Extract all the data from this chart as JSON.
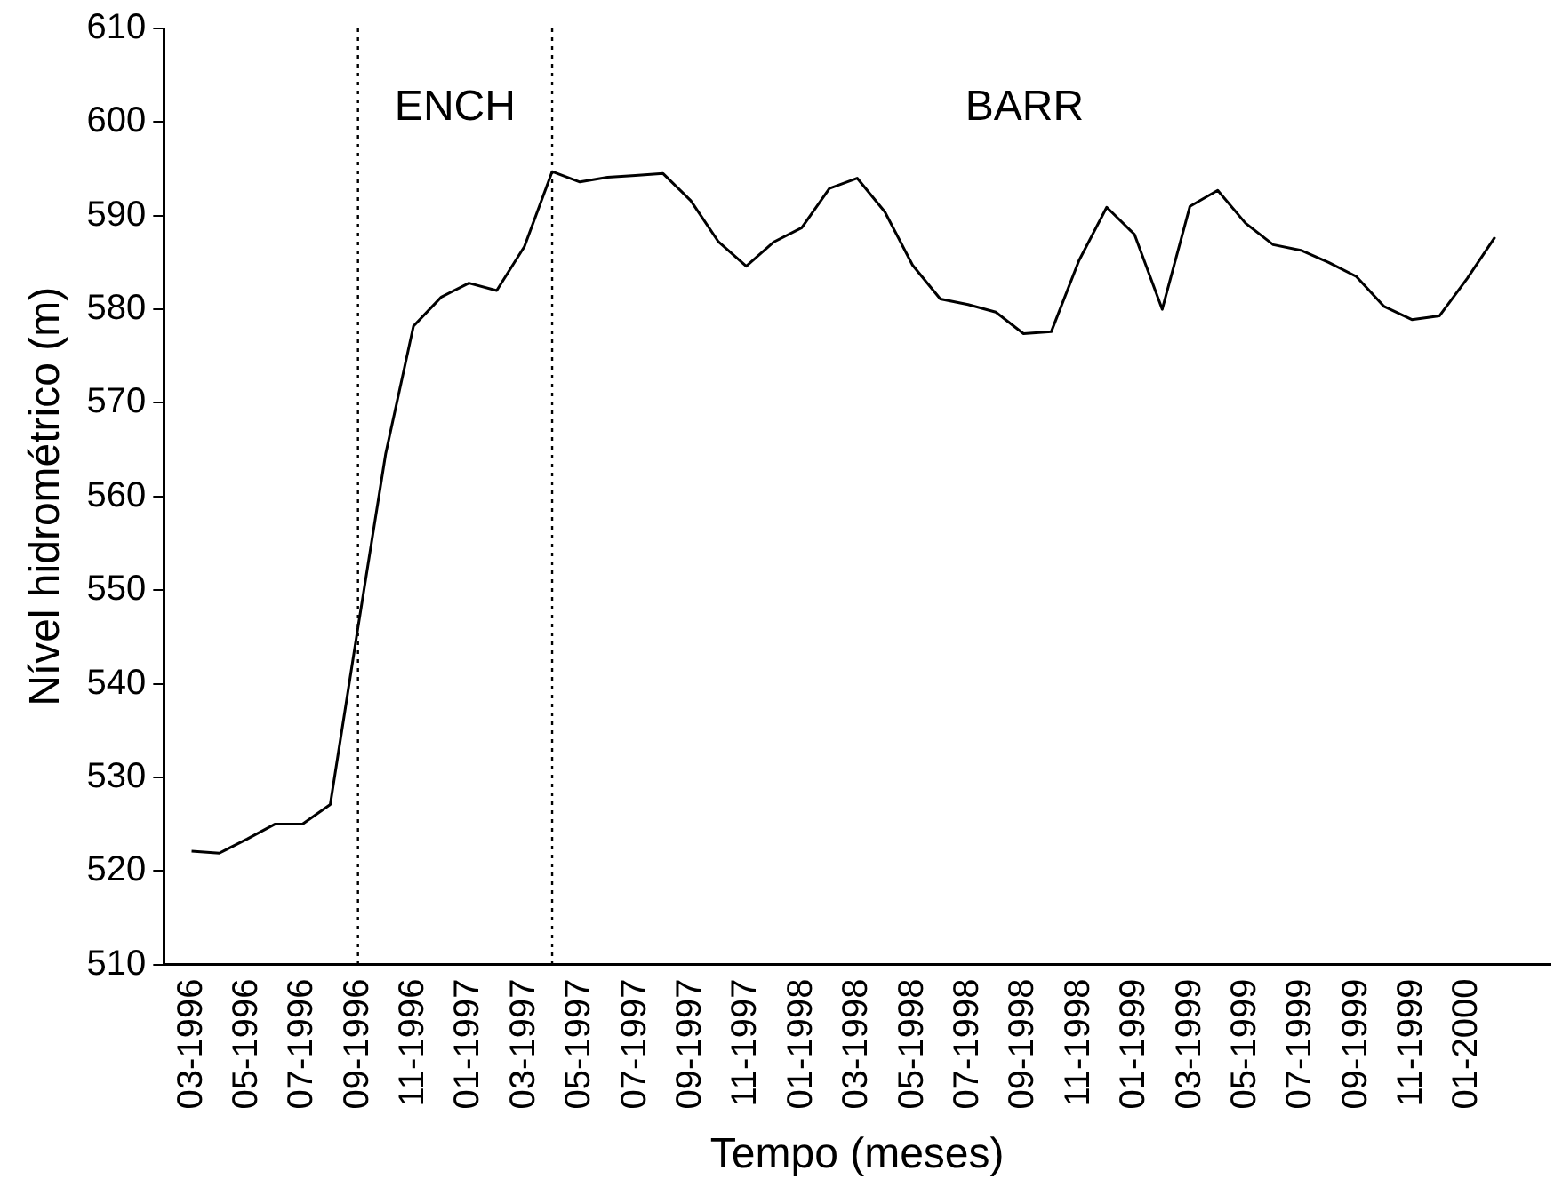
{
  "chart_data": {
    "type": "line",
    "xlabel": "Tempo (meses)",
    "ylabel": "Nível hidrométrico (m)",
    "x": [
      "1996-03",
      "1996-04",
      "1996-05",
      "1996-06",
      "1996-07",
      "1996-08",
      "1996-09",
      "1996-10",
      "1996-11",
      "1996-12",
      "1997-01",
      "1997-02",
      "1997-03",
      "1997-04",
      "1997-05",
      "1997-06",
      "1997-07",
      "1997-08",
      "1997-09",
      "1997-10",
      "1997-11",
      "1997-12",
      "1998-01",
      "1998-02",
      "1998-03",
      "1998-04",
      "1998-05",
      "1998-06",
      "1998-07",
      "1998-08",
      "1998-09",
      "1998-10",
      "1998-11",
      "1998-12",
      "1999-01",
      "1999-02",
      "1999-03",
      "1999-04",
      "1999-05",
      "1999-06",
      "1999-07",
      "1999-08",
      "1999-09",
      "1999-10",
      "1999-11",
      "1999-12",
      "2000-01",
      "2000-02"
    ],
    "values": [
      522.1,
      521.9,
      523.4,
      525,
      525,
      527.1,
      546,
      564.6,
      578.2,
      581.3,
      582.8,
      582,
      586.7,
      594.7,
      593.6,
      594.1,
      594.3,
      594.5,
      591.6,
      587.2,
      584.6,
      587.2,
      588.7,
      592.9,
      594,
      590.4,
      584.7,
      581.1,
      580.5,
      579.7,
      577.4,
      577.6,
      585.2,
      590.9,
      588,
      580,
      591,
      592.7,
      589.2,
      586.9,
      586.3,
      585,
      583.5,
      580.3,
      578.9,
      579.3,
      583.3,
      587.7
    ],
    "color": "#000000",
    "marker": "none",
    "line_style": "solid",
    "grid": false,
    "xlim": [
      "1996-02",
      "2000-04"
    ],
    "ylim": [
      510,
      610
    ],
    "yticks": [
      510,
      520,
      530,
      540,
      550,
      560,
      570,
      580,
      590,
      600,
      610
    ],
    "xticks": [
      {
        "value": "1996-03",
        "label": "03-1996"
      },
      {
        "value": "1996-05",
        "label": "05-1996"
      },
      {
        "value": "1996-07",
        "label": "07-1996"
      },
      {
        "value": "1996-09",
        "label": "09-1996"
      },
      {
        "value": "1996-11",
        "label": "11-1996"
      },
      {
        "value": "1997-01",
        "label": "01-1997"
      },
      {
        "value": "1997-03",
        "label": "03-1997"
      },
      {
        "value": "1997-05",
        "label": "05-1997"
      },
      {
        "value": "1997-07",
        "label": "07-1997"
      },
      {
        "value": "1997-09",
        "label": "09-1997"
      },
      {
        "value": "1997-11",
        "label": "11-1997"
      },
      {
        "value": "1998-01",
        "label": "01-1998"
      },
      {
        "value": "1998-03",
        "label": "03-1998"
      },
      {
        "value": "1998-05",
        "label": "05-1998"
      },
      {
        "value": "1998-07",
        "label": "07-1998"
      },
      {
        "value": "1998-09",
        "label": "09-1998"
      },
      {
        "value": "1998-11",
        "label": "11-1998"
      },
      {
        "value": "1999-01",
        "label": "01-1999"
      },
      {
        "value": "1999-03",
        "label": "03-1999"
      },
      {
        "value": "1999-05",
        "label": "05-1999"
      },
      {
        "value": "1999-07",
        "label": "07-1999"
      },
      {
        "value": "1999-09",
        "label": "09-1999"
      },
      {
        "value": "1999-11",
        "label": "11-1999"
      },
      {
        "value": "2000-01",
        "label": "01-2000"
      }
    ],
    "ref_lines": [
      {
        "axis": "x",
        "value": "1996-09",
        "color": "#000000",
        "line_style": "dotted"
      },
      {
        "axis": "x",
        "value": "1997-04",
        "color": "#000000",
        "line_style": "dotted"
      }
    ],
    "annotations": [
      "ENCH",
      "BARR"
    ]
  }
}
